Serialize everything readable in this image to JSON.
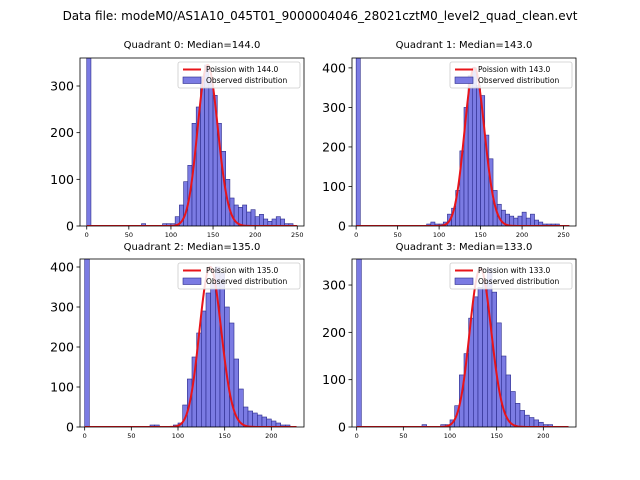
{
  "figure_title": "Data file: modeM0/AS1A10_045T01_9000004046_28021cztM0_level2_quad_clean.evt",
  "colors": {
    "bars": "#7b7be3",
    "bar_edge": "#2a2a8a",
    "fit_line": "#e8141a",
    "axes": "#000000"
  },
  "chart_data": [
    {
      "type": "bar",
      "title": "Quadrant 0: Median=144.0",
      "median": 144.0,
      "xlim": [
        -8,
        258
      ],
      "ylim": [
        0,
        360
      ],
      "xticks": [
        0,
        50,
        100,
        150,
        200,
        250
      ],
      "yticks": [
        0,
        100,
        200,
        300
      ],
      "legend": {
        "position": "top-right",
        "line_label": "Poission with 144.0",
        "bar_label": "Observed distribution"
      },
      "bin_width": 5,
      "spike": {
        "x": 0,
        "value": 360
      },
      "bin_starts": [
        0,
        65,
        90,
        95,
        100,
        105,
        110,
        115,
        120,
        125,
        130,
        135,
        140,
        145,
        150,
        155,
        160,
        165,
        170,
        175,
        180,
        185,
        190,
        195,
        200,
        205,
        210,
        215,
        220,
        225,
        230,
        235,
        240
      ],
      "values": [
        360,
        5,
        5,
        5,
        5,
        20,
        45,
        95,
        130,
        220,
        255,
        320,
        345,
        315,
        280,
        220,
        160,
        100,
        60,
        45,
        40,
        45,
        30,
        35,
        20,
        25,
        15,
        10,
        15,
        20,
        15,
        5,
        5
      ]
    },
    {
      "type": "bar",
      "title": "Quadrant 1: Median=143.0",
      "median": 143.0,
      "xlim": [
        -5,
        265
      ],
      "ylim": [
        0,
        425
      ],
      "xticks": [
        0,
        50,
        100,
        150,
        200,
        250
      ],
      "yticks": [
        0,
        100,
        200,
        300,
        400
      ],
      "legend": {
        "position": "top-right",
        "line_label": "Poission with 143.0",
        "bar_label": "Observed distribution"
      },
      "bin_width": 5,
      "spike": {
        "x": 0,
        "value": 425
      },
      "bin_starts": [
        0,
        85,
        90,
        95,
        100,
        105,
        110,
        115,
        120,
        125,
        130,
        135,
        140,
        145,
        150,
        155,
        160,
        165,
        170,
        175,
        180,
        185,
        190,
        195,
        200,
        205,
        210,
        215,
        220,
        225,
        230,
        235,
        240
      ],
      "values": [
        425,
        5,
        10,
        5,
        5,
        10,
        30,
        45,
        90,
        190,
        300,
        380,
        400,
        355,
        330,
        230,
        170,
        90,
        55,
        40,
        30,
        25,
        20,
        25,
        35,
        20,
        30,
        15,
        10,
        5,
        5,
        5,
        5
      ]
    },
    {
      "type": "bar",
      "title": "Quadrant 2: Median=135.0",
      "median": 135.0,
      "xlim": [
        -5,
        235
      ],
      "ylim": [
        0,
        420
      ],
      "xticks": [
        0,
        50,
        100,
        150,
        200
      ],
      "yticks": [
        0,
        100,
        200,
        300,
        400
      ],
      "legend": {
        "position": "top-right",
        "line_label": "Poission with 135.0",
        "bar_label": "Observed distribution"
      },
      "bin_width": 5,
      "spike": {
        "x": 0,
        "value": 420
      },
      "bin_starts": [
        0,
        70,
        75,
        95,
        100,
        105,
        110,
        115,
        120,
        125,
        130,
        135,
        140,
        145,
        150,
        155,
        160,
        165,
        170,
        175,
        180,
        185,
        190,
        195,
        200,
        205,
        210,
        215
      ],
      "values": [
        420,
        5,
        5,
        5,
        10,
        55,
        120,
        175,
        235,
        290,
        335,
        360,
        400,
        385,
        300,
        260,
        170,
        95,
        50,
        40,
        35,
        30,
        25,
        20,
        15,
        10,
        5,
        5
      ]
    },
    {
      "type": "bar",
      "title": "Quadrant 3: Median=133.0",
      "median": 133.0,
      "xlim": [
        -5,
        235
      ],
      "ylim": [
        0,
        355
      ],
      "xticks": [
        0,
        50,
        100,
        150,
        200
      ],
      "yticks": [
        0,
        100,
        200,
        300
      ],
      "legend": {
        "position": "top-right",
        "line_label": "Poission with 133.0",
        "bar_label": "Observed distribution"
      },
      "bin_width": 5,
      "spike": {
        "x": 0,
        "value": 355
      },
      "bin_starts": [
        0,
        70,
        90,
        95,
        100,
        105,
        110,
        115,
        120,
        125,
        130,
        135,
        140,
        145,
        150,
        155,
        160,
        165,
        170,
        175,
        180,
        185,
        190,
        195,
        200,
        205
      ],
      "values": [
        355,
        5,
        5,
        5,
        15,
        45,
        110,
        155,
        230,
        275,
        295,
        310,
        335,
        285,
        220,
        150,
        110,
        75,
        50,
        35,
        25,
        20,
        15,
        10,
        5,
        5
      ]
    }
  ]
}
